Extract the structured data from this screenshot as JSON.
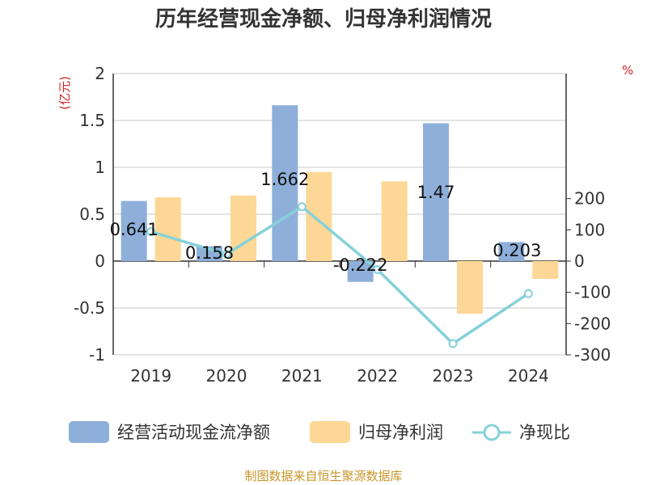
{
  "chart_data": {
    "type": "bar",
    "title": "历年经营现金净额、归母净利润情况",
    "categories": [
      "2019",
      "2020",
      "2021",
      "2022",
      "2023",
      "2024"
    ],
    "series": [
      {
        "name": "经营活动现金流净额",
        "type": "bar",
        "axis": "left",
        "color": "#8eafd9",
        "values": [
          0.641,
          0.158,
          1.662,
          -0.222,
          1.47,
          0.203
        ],
        "labels": [
          "0.641",
          "0.158",
          "1.662",
          "-0.222",
          "1.47",
          "0.203"
        ]
      },
      {
        "name": "归母净利润",
        "type": "bar",
        "axis": "left",
        "color": "#fdd795",
        "values": [
          0.68,
          0.7,
          0.95,
          0.85,
          -0.56,
          -0.19
        ]
      },
      {
        "name": "净现比",
        "type": "line",
        "axis": "right",
        "color": "#86d1d9",
        "values": [
          94,
          22,
          174,
          -27,
          -264,
          -104
        ]
      }
    ],
    "y_left": {
      "unit": "(亿元)",
      "ylim": [
        -1,
        2
      ],
      "ticks": [
        "-1",
        "-0.5",
        "0",
        "0.5",
        "1",
        "1.5",
        "2"
      ]
    },
    "y_right": {
      "unit": "%",
      "ylim": [
        -300,
        200
      ],
      "ticks": [
        "-300",
        "-200",
        "-100",
        "0",
        "100",
        "200"
      ]
    },
    "grid": true,
    "legend_position": "bottom"
  },
  "source": "制图数据来自恒生聚源数据库"
}
